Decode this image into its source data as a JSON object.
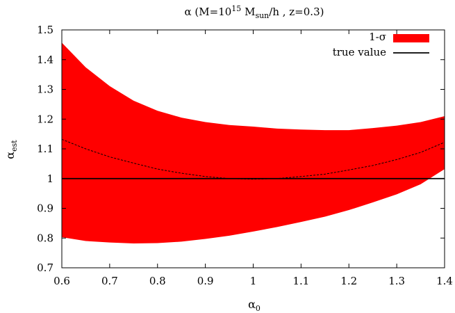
{
  "chart_data": {
    "type": "area",
    "title": {
      "prefix": "α (M=10",
      "exp": "15",
      "mid": " M",
      "sub": "sun",
      "suffix": "/h , z=0.3)"
    },
    "xlabel": {
      "base": "α",
      "sub": "0"
    },
    "ylabel": {
      "base": "α",
      "sub": "est"
    },
    "xlim": [
      0.6,
      1.4
    ],
    "ylim": [
      0.7,
      1.5
    ],
    "xticks": [
      0.6,
      0.7,
      0.8,
      0.9,
      1,
      1.1,
      1.2,
      1.3,
      1.4
    ],
    "xtick_labels": [
      "0.6",
      "0.7",
      "0.8",
      "0.9",
      "1",
      "1.1",
      "1.2",
      "1.3",
      "1.4"
    ],
    "yticks": [
      0.7,
      0.8,
      0.9,
      1,
      1.1,
      1.2,
      1.3,
      1.4,
      1.5
    ],
    "ytick_labels": [
      "0.7",
      "0.8",
      "0.9",
      "1",
      "1.1",
      "1.2",
      "1.3",
      "1.4",
      "1.5"
    ],
    "legend_position": "top-right",
    "x": [
      0.6,
      0.65,
      0.7,
      0.75,
      0.8,
      0.85,
      0.9,
      0.95,
      1.0,
      1.05,
      1.1,
      1.15,
      1.2,
      1.25,
      1.3,
      1.35,
      1.4
    ],
    "series": [
      {
        "name": "1-σ",
        "kind": "band",
        "color": "#ff0000",
        "upper": [
          1.457,
          1.374,
          1.311,
          1.262,
          1.228,
          1.205,
          1.19,
          1.18,
          1.175,
          1.168,
          1.165,
          1.163,
          1.163,
          1.17,
          1.178,
          1.19,
          1.21
        ],
        "lower": [
          0.803,
          0.79,
          0.785,
          0.782,
          0.783,
          0.788,
          0.797,
          0.808,
          0.822,
          0.837,
          0.854,
          0.872,
          0.894,
          0.92,
          0.947,
          0.981,
          1.032
        ]
      },
      {
        "name": "",
        "kind": "dashed",
        "color": "#000000",
        "values": [
          1.132,
          1.1,
          1.073,
          1.052,
          1.032,
          1.018,
          1.007,
          1.0,
          0.998,
          1.0,
          1.007,
          1.015,
          1.029,
          1.044,
          1.064,
          1.088,
          1.122
        ]
      },
      {
        "name": "true value",
        "kind": "line",
        "color": "#000000",
        "values": [
          1,
          1,
          1,
          1,
          1,
          1,
          1,
          1,
          1,
          1,
          1,
          1,
          1,
          1,
          1,
          1,
          1
        ]
      }
    ]
  }
}
